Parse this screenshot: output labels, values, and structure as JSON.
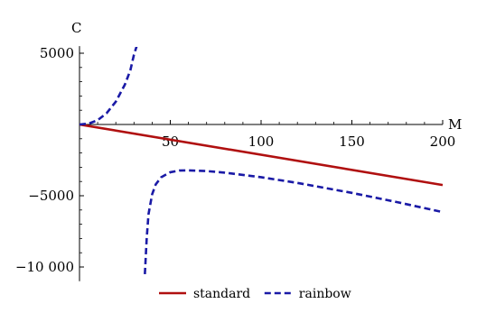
{
  "chart_data": {
    "type": "line",
    "xlabel": "M",
    "ylabel": "C",
    "xlim": [
      0,
      200
    ],
    "ylim": [
      -11000,
      5500
    ],
    "x_ticks": [
      50,
      100,
      150,
      200
    ],
    "x_tick_labels": [
      "50",
      "100",
      "150",
      "200"
    ],
    "y_ticks": [
      5000,
      -5000,
      -10000
    ],
    "y_tick_labels": [
      "5000",
      "−5000",
      "−10 000"
    ],
    "grid": false,
    "legend_position": "bottom",
    "series": [
      {
        "name": "standard",
        "color": "#b01010",
        "dash": "solid",
        "x": [
          0,
          200
        ],
        "y": [
          0,
          -4250
        ]
      },
      {
        "name": "rainbow",
        "color": "#1a1aa6",
        "dash": "dashed",
        "x": [
          0,
          5,
          10,
          15,
          20,
          25,
          28,
          30,
          31.5
        ],
        "y": [
          0,
          60,
          300,
          800,
          1600,
          2800,
          3800,
          4900,
          5500
        ]
      },
      {
        "name": "rainbow",
        "color": "#1a1aa6",
        "dash": "dashed",
        "x": [
          36,
          37,
          38,
          40,
          42,
          45,
          50,
          55,
          60,
          70,
          80,
          100,
          120,
          150,
          175,
          200
        ],
        "y": [
          -10500,
          -8000,
          -6300,
          -4900,
          -4200,
          -3700,
          -3350,
          -3230,
          -3220,
          -3270,
          -3380,
          -3700,
          -4100,
          -4800,
          -5450,
          -6150
        ]
      }
    ]
  }
}
